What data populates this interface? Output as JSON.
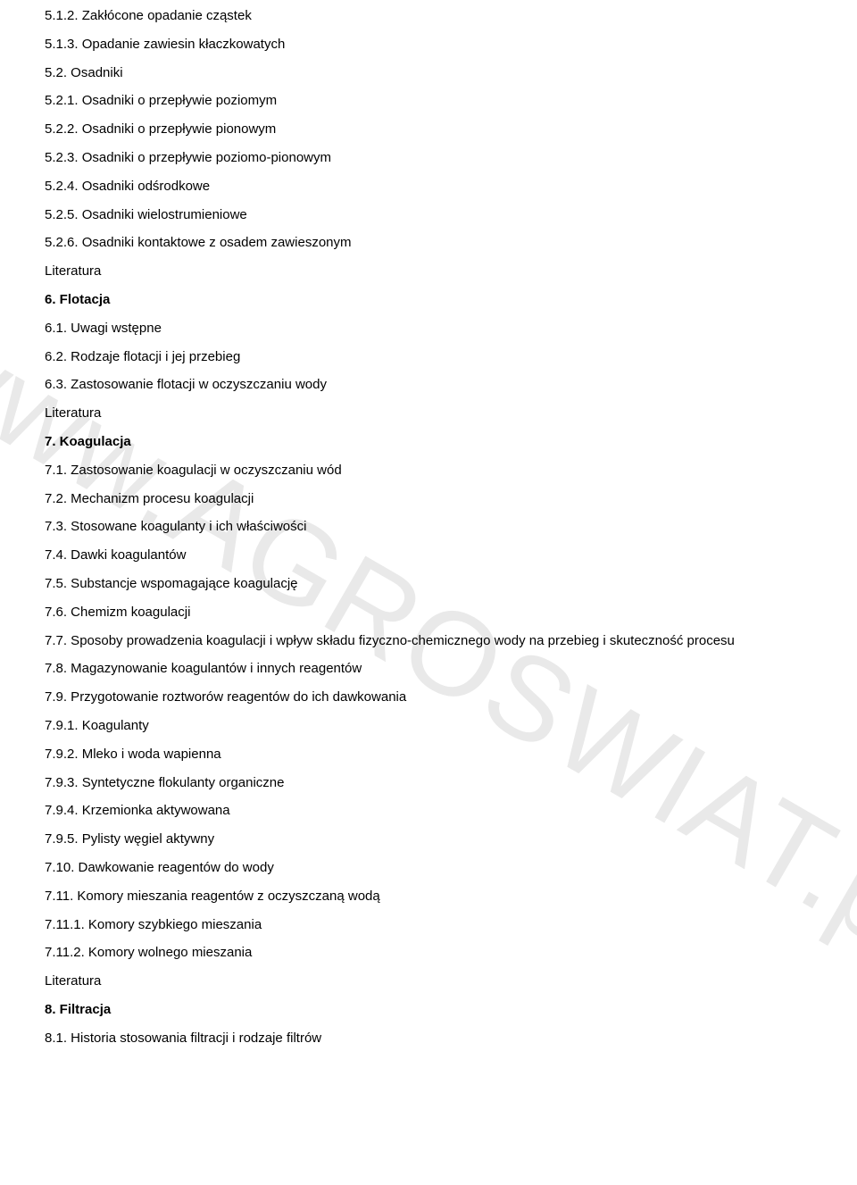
{
  "watermark": "www.AGROSWIAT.pl",
  "lines": [
    {
      "text": "5.1.2. Zakłócone opadanie cząstek",
      "bold": false,
      "justify": false
    },
    {
      "text": "5.1.3. Opadanie zawiesin kłaczkowatych",
      "bold": false,
      "justify": false
    },
    {
      "text": "5.2. Osadniki",
      "bold": false,
      "justify": false
    },
    {
      "text": "5.2.1. Osadniki o przepływie poziomym",
      "bold": false,
      "justify": false
    },
    {
      "text": "5.2.2. Osadniki o przepływie pionowym",
      "bold": false,
      "justify": false
    },
    {
      "text": "5.2.3. Osadniki o przepływie poziomo-pionowym",
      "bold": false,
      "justify": false
    },
    {
      "text": "5.2.4. Osadniki odśrodkowe",
      "bold": false,
      "justify": false
    },
    {
      "text": "5.2.5. Osadniki wielostrumieniowe",
      "bold": false,
      "justify": false
    },
    {
      "text": "5.2.6. Osadniki kontaktowe z osadem zawieszonym",
      "bold": false,
      "justify": false
    },
    {
      "text": "Literatura",
      "bold": false,
      "justify": false
    },
    {
      "text": "6. Flotacja",
      "bold": true,
      "justify": false
    },
    {
      "text": "6.1. Uwagi wstępne",
      "bold": false,
      "justify": false
    },
    {
      "text": "6.2. Rodzaje flotacji i jej przebieg",
      "bold": false,
      "justify": false
    },
    {
      "text": "6.3. Zastosowanie flotacji w oczyszczaniu wody",
      "bold": false,
      "justify": false
    },
    {
      "text": "Literatura",
      "bold": false,
      "justify": false
    },
    {
      "text": "7. Koagulacja",
      "bold": true,
      "justify": false
    },
    {
      "text": "7.1. Zastosowanie koagulacji w oczyszczaniu wód",
      "bold": false,
      "justify": false
    },
    {
      "text": "7.2. Mechanizm procesu koagulacji",
      "bold": false,
      "justify": false
    },
    {
      "text": "7.3. Stosowane koagulanty i ich właściwości",
      "bold": false,
      "justify": false
    },
    {
      "text": "7.4. Dawki koagulantów",
      "bold": false,
      "justify": false
    },
    {
      "text": "7.5. Substancje wspomagające koagulację",
      "bold": false,
      "justify": false
    },
    {
      "text": "7.6. Chemizm koagulacji",
      "bold": false,
      "justify": false
    },
    {
      "text": "7.7. Sposoby prowadzenia koagulacji i wpływ składu fizyczno-chemicznego wody na przebieg i skuteczność procesu",
      "bold": false,
      "justify": true
    },
    {
      "text": "7.8. Magazynowanie koagulantów i innych reagentów",
      "bold": false,
      "justify": false
    },
    {
      "text": "7.9. Przygotowanie roztworów reagentów do ich dawkowania",
      "bold": false,
      "justify": false
    },
    {
      "text": "7.9.1. Koagulanty",
      "bold": false,
      "justify": false
    },
    {
      "text": "7.9.2. Mleko i woda wapienna",
      "bold": false,
      "justify": false
    },
    {
      "text": "7.9.3. Syntetyczne flokulanty organiczne",
      "bold": false,
      "justify": false
    },
    {
      "text": "7.9.4. Krzemionka aktywowana",
      "bold": false,
      "justify": false
    },
    {
      "text": "7.9.5. Pylisty węgiel aktywny",
      "bold": false,
      "justify": false
    },
    {
      "text": "7.10. Dawkowanie reagentów do wody",
      "bold": false,
      "justify": false
    },
    {
      "text": "7.11. Komory mieszania reagentów z oczyszczaną wodą",
      "bold": false,
      "justify": false
    },
    {
      "text": "7.11.1. Komory szybkiego mieszania",
      "bold": false,
      "justify": false
    },
    {
      "text": "7.11.2. Komory wolnego mieszania",
      "bold": false,
      "justify": false
    },
    {
      "text": "Literatura",
      "bold": false,
      "justify": false
    },
    {
      "text": "8. Filtracja",
      "bold": true,
      "justify": false
    },
    {
      "text": "8.1. Historia stosowania filtracji i rodzaje filtrów",
      "bold": false,
      "justify": false
    }
  ]
}
